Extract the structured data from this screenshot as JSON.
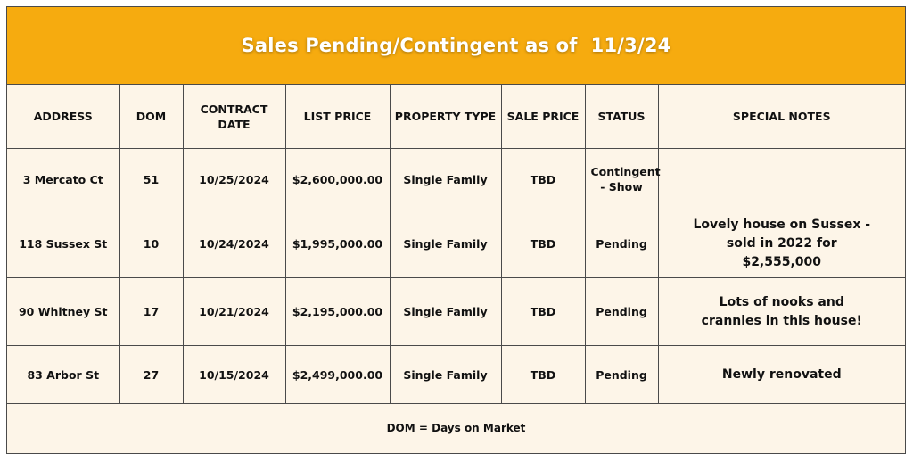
{
  "title": "Sales Pending/Contingent as of  11/3/24",
  "colors": {
    "banner": "#f6ab0f",
    "table_background": "#fdf5e8",
    "title_text": "#ffffff"
  },
  "table": {
    "headers": [
      "ADDRESS",
      "DOM",
      "CONTRACT DATE",
      "LIST PRICE",
      "PROPERTY TYPE",
      "SALE PRICE",
      "STATUS",
      "SPECIAL NOTES"
    ],
    "rows": [
      {
        "address": "3 Mercato Ct",
        "dom": "51",
        "contract_date": "10/25/2024",
        "list_price": "$2,600,000.00",
        "property_type": "Single Family",
        "sale_price": "TBD",
        "status": "Contingent - Show",
        "notes": ""
      },
      {
        "address": "118 Sussex St",
        "dom": "10",
        "contract_date": "10/24/2024",
        "list_price": "$1,995,000.00",
        "property_type": "Single Family",
        "sale_price": "TBD",
        "status": "Pending",
        "notes": "Lovely house on Sussex - sold in 2022 for $2,555,000"
      },
      {
        "address": "90 Whitney St",
        "dom": "17",
        "contract_date": "10/21/2024",
        "list_price": "$2,195,000.00",
        "property_type": "Single Family",
        "sale_price": "TBD",
        "status": "Pending",
        "notes": "Lots of nooks and crannies in this house!"
      },
      {
        "address": "83 Arbor St",
        "dom": "27",
        "contract_date": "10/15/2024",
        "list_price": "$2,499,000.00",
        "property_type": "Single Family",
        "sale_price": "TBD",
        "status": "Pending",
        "notes": "Newly renovated"
      }
    ]
  },
  "footer": "DOM = Days on Market"
}
